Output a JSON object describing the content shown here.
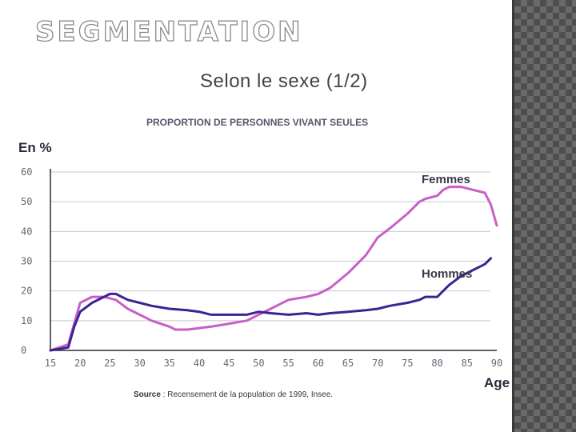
{
  "slide": {
    "title": "SEGMENTATION",
    "subtitle": "Selon le sexe (1/2)"
  },
  "colors": {
    "femmes": "#c85ec8",
    "hommes": "#3a2490",
    "grid": "#c8c8d0",
    "axis": "#2a2a3a",
    "side_pattern": "#5a5a5a"
  },
  "chart_data": {
    "type": "line",
    "title": "PROPORTION DE PERSONNES VIVANT SEULES",
    "ylabel": "En %",
    "xlabel": "Age",
    "xlim": [
      15,
      90
    ],
    "ylim": [
      0,
      60
    ],
    "x_ticks": [
      "15",
      "20",
      "25",
      "30",
      "35",
      "40",
      "45",
      "50",
      "55",
      "60",
      "65",
      "70",
      "75",
      "80",
      "85",
      "90"
    ],
    "y_ticks": [
      "0",
      "10",
      "20",
      "30",
      "40",
      "50",
      "60"
    ],
    "grid": true,
    "source_prefix": "Source",
    "source_text": " : Recensement de la population de 1999, Insee.",
    "series": [
      {
        "name": "Femmes",
        "x": [
          15,
          18,
          20,
          22,
          24,
          26,
          28,
          30,
          32,
          35,
          36,
          38,
          40,
          42,
          45,
          48,
          50,
          52,
          55,
          58,
          60,
          62,
          65,
          68,
          70,
          72,
          75,
          77,
          78,
          80,
          81,
          82,
          84,
          86,
          88,
          89,
          90
        ],
        "y": [
          0,
          2,
          16,
          18,
          18,
          17,
          14,
          12,
          10,
          8,
          7,
          7,
          7.5,
          8,
          9,
          10,
          12,
          14,
          17,
          18,
          19,
          21,
          26,
          32,
          38,
          41,
          46,
          50,
          51,
          52,
          54,
          55,
          55,
          54,
          53,
          49,
          42
        ]
      },
      {
        "name": "Hommes",
        "x": [
          15,
          18,
          19,
          20,
          22,
          24,
          25,
          26,
          28,
          30,
          32,
          35,
          38,
          40,
          42,
          45,
          48,
          50,
          52,
          55,
          58,
          60,
          62,
          65,
          68,
          70,
          72,
          75,
          77,
          78,
          80,
          82,
          84,
          86,
          88,
          89
        ],
        "y": [
          0,
          1,
          8,
          13,
          16,
          18,
          19,
          19,
          17,
          16,
          15,
          14,
          13.5,
          13,
          12,
          12,
          12,
          13,
          12.5,
          12,
          12.5,
          12,
          12.5,
          13,
          13.5,
          14,
          15,
          16,
          17,
          18,
          18,
          22,
          25,
          27,
          29,
          31
        ]
      }
    ]
  }
}
